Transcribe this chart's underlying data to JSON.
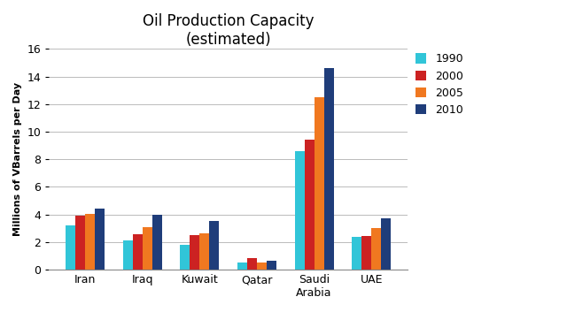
{
  "title": "Oil Production Capacity\n(estimated)",
  "ylabel": "Millions of VBarrels per Day",
  "categories": [
    "Iran",
    "Iraq",
    "Kuwait",
    "Qatar",
    "Saudi\nArabia",
    "UAE"
  ],
  "years": [
    "1990",
    "2000",
    "2005",
    "2010"
  ],
  "values": {
    "1990": [
      3.2,
      2.1,
      1.8,
      0.5,
      8.6,
      2.4
    ],
    "2000": [
      3.9,
      2.6,
      2.5,
      0.85,
      9.4,
      2.45
    ],
    "2005": [
      4.05,
      3.1,
      2.65,
      0.5,
      12.5,
      3.0
    ],
    "2010": [
      4.4,
      4.0,
      3.5,
      0.65,
      14.6,
      3.75
    ]
  },
  "colors": {
    "1990": "#31C5D8",
    "2000": "#CC2222",
    "2005": "#F07820",
    "2010": "#1F3D7A"
  },
  "ylim": [
    0,
    16
  ],
  "yticks": [
    0,
    2,
    4,
    6,
    8,
    10,
    12,
    14,
    16
  ],
  "bar_width": 0.17,
  "title_fontsize": 12,
  "axis_label_fontsize": 8,
  "tick_fontsize": 9,
  "legend_fontsize": 9,
  "background_color": "#FFFFFF",
  "grid_color": "#BBBBBB"
}
